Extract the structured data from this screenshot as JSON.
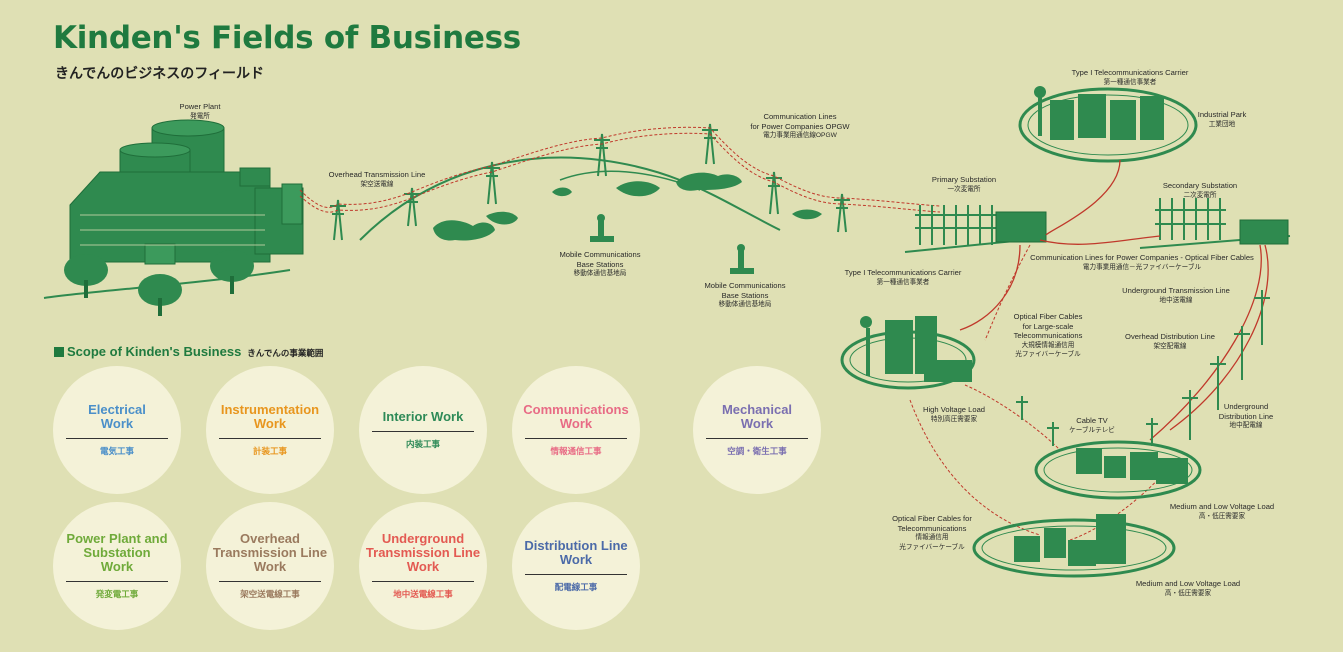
{
  "header": {
    "title": "Kinden's Fields of Business",
    "subtitle": "きんでんのビジネスのフィールド"
  },
  "colors": {
    "background": "#dfe0b4",
    "green": "#2f8a4f",
    "dark_green": "#1f6e3a",
    "red_line": "#c0392b",
    "circle": "#f4f2d8"
  },
  "labels": {
    "power_plant": {
      "en": "Power Plant",
      "jp": "発電所"
    },
    "overhead_line": {
      "en": "Overhead Transmission Line",
      "jp": "架空送電線"
    },
    "comm_lines": {
      "en": "Communication Lines\nfor Power Companies OPGW",
      "jp": "電力事業用通信線OPGW"
    },
    "mobile1": {
      "en": "Mobile Communications\nBase Stations",
      "jp": "移動体通信基地局"
    },
    "mobile2": {
      "en": "Mobile Communications\nBase Stations",
      "jp": "移動体通信基地局"
    },
    "primary_sub": {
      "en": "Primary Substation",
      "jp": "一次変電所"
    },
    "type1_carrier_top": {
      "en": "Type I Telecommunications Carrier",
      "jp": "第一種通信事業者"
    },
    "industrial_park": {
      "en": "Industrial Park",
      "jp": "工業団地"
    },
    "secondary_sub": {
      "en": "Secondary Substation",
      "jp": "二次変電所"
    },
    "comm_optical": {
      "en": "Communication Lines for Power Companies - Optical Fiber Cables",
      "jp": "電力事業用通信－光ファイバーケーブル"
    },
    "type1_carrier": {
      "en": "Type I  Telecommunications Carrier",
      "jp": "第一種通信事業者"
    },
    "optical_large": {
      "en": "Optical Fiber Cables\nfor Large-scale\nTelecommunications",
      "jp": "大規模情報通信用\n光ファイバーケーブル"
    },
    "underground_tx": {
      "en": "Underground Transmission Line",
      "jp": "地中送電線"
    },
    "overhead_dist": {
      "en": "Overhead Distribution Line",
      "jp": "架空配電線"
    },
    "high_voltage": {
      "en": "High Voltage Load",
      "jp": "特別高圧需要家"
    },
    "cable_tv": {
      "en": "Cable TV",
      "jp": "ケーブルテレビ"
    },
    "underground_dist": {
      "en": "Underground\nDistribution Line",
      "jp": "地中配電線"
    },
    "med_low_1": {
      "en": "Medium and Low Voltage Load",
      "jp": "高・低圧需要家"
    },
    "optical_telecom": {
      "en": "Optical Fiber Cables for\nTelecommunications",
      "jp": "情報通信用\n光ファイバーケーブル"
    },
    "med_low_2": {
      "en": "Medium and Low Voltage Load",
      "jp": "高・低圧需要家"
    }
  },
  "scope": {
    "title": "Scope of Kinden's Business",
    "title_jp": "きんでんの事業範囲",
    "items": [
      {
        "en": "Electrical\nWork",
        "jp": "電気工事",
        "color": "#4a8fc9"
      },
      {
        "en": "Instrumentation\nWork",
        "jp": "計装工事",
        "color": "#e8961e"
      },
      {
        "en": "Interior Work",
        "jp": "内装工事",
        "color": "#2d8a57"
      },
      {
        "en": "Communications\nWork",
        "jp": "情報通信工事",
        "color": "#e86b85"
      },
      {
        "en": "Mechanical\nWork",
        "jp": "空調・衛生工事",
        "color": "#7a6fb0"
      },
      {
        "en": "Power Plant and\nSubstation\nWork",
        "jp": "発変電工事",
        "color": "#6faa3a"
      },
      {
        "en": "Overhead\nTransmission Line\nWork",
        "jp": "架空送電線工事",
        "color": "#9a7a5e"
      },
      {
        "en": "Underground\nTransmission Line\nWork",
        "jp": "地中送電線工事",
        "color": "#e35a52"
      },
      {
        "en": "Distribution Line\nWork",
        "jp": "配電線工事",
        "color": "#4b6aa8"
      }
    ]
  }
}
